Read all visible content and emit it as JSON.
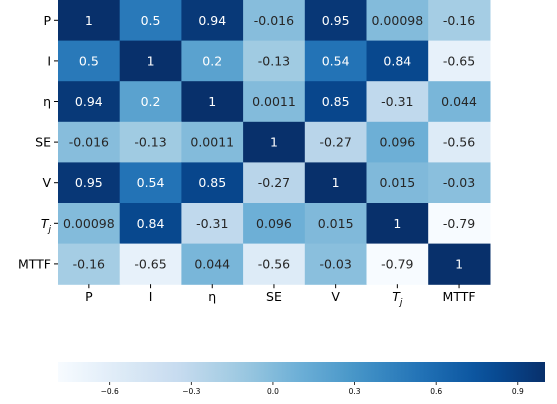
{
  "chart_data": {
    "type": "heatmap",
    "title": "",
    "xlabel": "",
    "ylabel": "",
    "row_labels": [
      {
        "base": "P",
        "sub": ""
      },
      {
        "base": "I",
        "sub": ""
      },
      {
        "base": "η",
        "sub": ""
      },
      {
        "base": "SE",
        "sub": ""
      },
      {
        "base": "V",
        "sub": ""
      },
      {
        "base": "T",
        "sub": "j"
      },
      {
        "base": "MTTF",
        "sub": ""
      }
    ],
    "col_labels": [
      {
        "base": "P",
        "sub": ""
      },
      {
        "base": "I",
        "sub": ""
      },
      {
        "base": "η",
        "sub": ""
      },
      {
        "base": "SE",
        "sub": ""
      },
      {
        "base": "V",
        "sub": ""
      },
      {
        "base": "T",
        "sub": "j"
      },
      {
        "base": "MTTF",
        "sub": ""
      }
    ],
    "values": [
      [
        1,
        0.5,
        0.94,
        -0.016,
        0.95,
        0.00098,
        -0.16
      ],
      [
        0.5,
        1,
        0.2,
        -0.13,
        0.54,
        0.84,
        -0.65
      ],
      [
        0.94,
        0.2,
        1,
        0.0011,
        0.85,
        -0.31,
        0.044
      ],
      [
        -0.016,
        -0.13,
        0.0011,
        1,
        -0.27,
        0.096,
        -0.56
      ],
      [
        0.95,
        0.54,
        0.85,
        -0.27,
        1,
        0.015,
        -0.03
      ],
      [
        0.00098,
        0.84,
        -0.31,
        0.096,
        0.015,
        1,
        -0.79
      ],
      [
        -0.16,
        -0.65,
        0.044,
        -0.56,
        -0.03,
        -0.79,
        1
      ]
    ],
    "value_labels": [
      [
        "1",
        "0.5",
        "0.94",
        "-0.016",
        "0.95",
        "0.00098",
        "-0.16"
      ],
      [
        "0.5",
        "1",
        "0.2",
        "-0.13",
        "0.54",
        "0.84",
        "-0.65"
      ],
      [
        "0.94",
        "0.2",
        "1",
        "0.0011",
        "0.85",
        "-0.31",
        "0.044"
      ],
      [
        "-0.016",
        "-0.13",
        "0.0011",
        "1",
        "-0.27",
        "0.096",
        "-0.56"
      ],
      [
        "0.95",
        "0.54",
        "0.85",
        "-0.27",
        "1",
        "0.015",
        "-0.03"
      ],
      [
        "0.00098",
        "0.84",
        "-0.31",
        "0.096",
        "0.015",
        "1",
        "-0.79"
      ],
      [
        "-0.16",
        "-0.65",
        "0.044",
        "-0.56",
        "-0.03",
        "-0.79",
        "1"
      ]
    ],
    "colorscale": "Blues",
    "vmin": -0.79,
    "vmax": 1,
    "colorbar": {
      "orientation": "horizontal",
      "ticks": [
        -0.6,
        -0.3,
        0.0,
        0.3,
        0.6,
        0.9
      ],
      "tick_labels": [
        "−0.6",
        "−0.3",
        "0.0",
        "0.3",
        "0.6",
        "0.9"
      ]
    },
    "grid": false,
    "legend": "none"
  }
}
